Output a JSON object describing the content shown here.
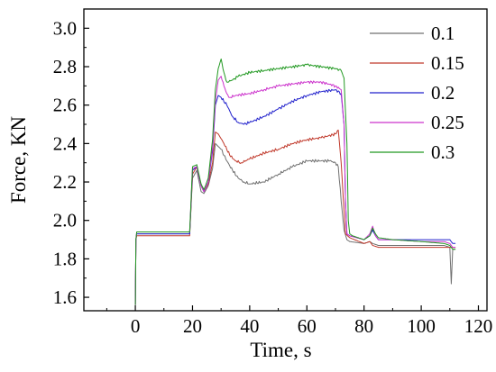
{
  "chart_data": {
    "type": "line",
    "xlabel": "Time, s",
    "ylabel": "Force, KN",
    "xlim": [
      -18,
      123
    ],
    "ylim": [
      1.53,
      3.1
    ],
    "xticks": [
      0,
      20,
      40,
      60,
      80,
      100,
      120
    ],
    "xtick_labels": [
      "0",
      "20",
      "40",
      "60",
      "80",
      "100",
      "120"
    ],
    "yticks": [
      1.6,
      1.8,
      2.0,
      2.2,
      2.4,
      2.6,
      2.8,
      3.0
    ],
    "ytick_labels": [
      "1.6",
      "1.8",
      "2.0",
      "2.2",
      "2.4",
      "2.6",
      "2.8",
      "3.0"
    ],
    "grid": false,
    "legend_position": "top-right",
    "series": [
      {
        "name": "0.1",
        "color": "#707070",
        "x": [
          0,
          0.2,
          0.5,
          18,
          19,
          20,
          21.5,
          23,
          24,
          25.5,
          27,
          28,
          30,
          32,
          34,
          36,
          38,
          40,
          45,
          50,
          55,
          60,
          65,
          68,
          70,
          71,
          72,
          73,
          74,
          75,
          80,
          82,
          83,
          85,
          90,
          100,
          108,
          110,
          110.5,
          111,
          112
        ],
        "y": [
          1.56,
          1.9,
          1.93,
          1.93,
          1.93,
          2.22,
          2.26,
          2.15,
          2.14,
          2.18,
          2.27,
          2.4,
          2.37,
          2.31,
          2.26,
          2.22,
          2.2,
          2.19,
          2.2,
          2.24,
          2.28,
          2.31,
          2.31,
          2.31,
          2.3,
          2.28,
          2.1,
          1.95,
          1.9,
          1.89,
          1.88,
          1.89,
          1.88,
          1.87,
          1.87,
          1.87,
          1.87,
          1.86,
          1.67,
          1.85,
          1.85
        ]
      },
      {
        "name": "0.15",
        "color": "#c0392b",
        "x": [
          0,
          0.2,
          0.5,
          18,
          19,
          20,
          21.5,
          23,
          24,
          25.5,
          27,
          28,
          29,
          31,
          33,
          35,
          37,
          40,
          45,
          50,
          55,
          60,
          65,
          70,
          71,
          72,
          73,
          73.5,
          75,
          80,
          82,
          83,
          85,
          90,
          100,
          108,
          110,
          111,
          112
        ],
        "y": [
          1.56,
          1.9,
          1.92,
          1.92,
          1.92,
          2.24,
          2.28,
          2.18,
          2.15,
          2.19,
          2.3,
          2.46,
          2.45,
          2.4,
          2.34,
          2.31,
          2.3,
          2.32,
          2.35,
          2.37,
          2.4,
          2.42,
          2.43,
          2.45,
          2.47,
          2.3,
          2.05,
          1.93,
          1.91,
          1.88,
          1.89,
          1.87,
          1.86,
          1.86,
          1.86,
          1.86,
          1.86,
          1.86,
          1.86
        ]
      },
      {
        "name": "0.2",
        "color": "#2222cc",
        "x": [
          0,
          0.2,
          0.5,
          18,
          19,
          20,
          21.5,
          23,
          24,
          25.5,
          27,
          28,
          29,
          30,
          32,
          34,
          36,
          38,
          40,
          45,
          50,
          55,
          60,
          65,
          70,
          72,
          73,
          73.5,
          74,
          75,
          80,
          82,
          83,
          84,
          85,
          90,
          100,
          108,
          110,
          111,
          112
        ],
        "y": [
          1.56,
          1.9,
          1.93,
          1.93,
          1.93,
          2.26,
          2.28,
          2.18,
          2.15,
          2.2,
          2.36,
          2.6,
          2.65,
          2.64,
          2.6,
          2.54,
          2.51,
          2.5,
          2.51,
          2.54,
          2.58,
          2.62,
          2.65,
          2.67,
          2.68,
          2.66,
          2.5,
          2.1,
          1.93,
          1.92,
          1.9,
          1.92,
          1.95,
          1.92,
          1.9,
          1.9,
          1.9,
          1.9,
          1.9,
          1.88,
          1.88
        ]
      },
      {
        "name": "0.25",
        "color": "#cc33cc",
        "x": [
          0,
          0.2,
          0.5,
          18,
          19,
          20,
          21.5,
          23,
          24,
          25.5,
          27,
          28,
          29,
          30,
          31,
          32,
          33,
          35,
          40,
          45,
          50,
          55,
          60,
          65,
          70,
          72,
          73,
          73.5,
          74,
          75,
          80,
          82,
          83,
          84,
          85,
          90,
          100,
          108,
          110,
          111,
          112
        ],
        "y": [
          1.56,
          1.9,
          1.94,
          1.94,
          1.94,
          2.27,
          2.28,
          2.18,
          2.15,
          2.2,
          2.38,
          2.62,
          2.73,
          2.75,
          2.7,
          2.66,
          2.64,
          2.65,
          2.66,
          2.68,
          2.7,
          2.71,
          2.72,
          2.72,
          2.7,
          2.68,
          2.5,
          2.1,
          1.93,
          1.92,
          1.9,
          1.93,
          1.97,
          1.92,
          1.9,
          1.9,
          1.89,
          1.89,
          1.88,
          1.86,
          1.86
        ]
      },
      {
        "name": "0.3",
        "color": "#229922",
        "x": [
          0,
          0.2,
          0.5,
          18,
          19,
          20,
          21.5,
          23,
          24,
          25.5,
          27,
          28,
          29,
          30,
          31,
          32,
          34,
          36,
          40,
          45,
          50,
          55,
          60,
          65,
          70,
          72,
          73,
          74,
          74.5,
          75,
          76,
          80,
          82,
          83,
          84,
          85,
          90,
          100,
          108,
          110,
          111,
          112
        ],
        "y": [
          1.56,
          1.9,
          1.94,
          1.94,
          1.94,
          2.28,
          2.29,
          2.19,
          2.16,
          2.22,
          2.42,
          2.68,
          2.79,
          2.84,
          2.77,
          2.72,
          2.73,
          2.75,
          2.77,
          2.78,
          2.79,
          2.8,
          2.81,
          2.8,
          2.79,
          2.78,
          2.74,
          2.4,
          2.0,
          1.93,
          1.92,
          1.9,
          1.92,
          1.96,
          1.93,
          1.91,
          1.9,
          1.89,
          1.88,
          1.87,
          1.85,
          1.85
        ]
      }
    ]
  }
}
